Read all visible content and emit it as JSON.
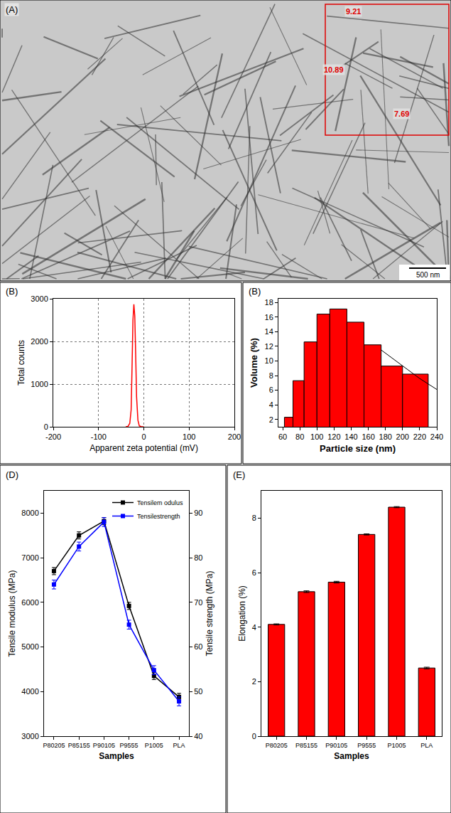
{
  "image_panel": {
    "label": "(A)",
    "measurements": [
      9.21,
      10.89,
      7.69
    ],
    "scale_bar": "500 nm"
  },
  "chart_data": [
    {
      "type": "line",
      "label": "(B)",
      "x_label": "Apparent zeta potential (mV)",
      "y_label": "Total counts",
      "x": [
        -40,
        -35,
        -31,
        -28,
        -26,
        -24,
        -22,
        -20,
        -18,
        -16,
        -13,
        -10,
        -5,
        0
      ],
      "values": [
        0,
        10,
        80,
        400,
        1400,
        2500,
        2870,
        2600,
        1700,
        700,
        150,
        20,
        0,
        0
      ],
      "color": "#ff0000",
      "xlim": [
        -200,
        200
      ],
      "xticks": [
        -200,
        -100,
        0,
        100,
        200
      ],
      "ylim": [
        0,
        3000
      ],
      "yticks": [
        0,
        1000,
        2000,
        3000
      ],
      "grid": true
    },
    {
      "type": "histogram",
      "label": "(B)",
      "x_label": "Particle size (nm)",
      "y_label": "Volume (%)",
      "bins": [
        62,
        72,
        85,
        100,
        115,
        135,
        155,
        175,
        200,
        230
      ],
      "values": [
        2.3,
        7.3,
        12.6,
        16.4,
        17.1,
        15.3,
        12.2,
        9.3,
        8.2
      ],
      "color": "#ff0000",
      "fit": {
        "x": [
          175,
          200,
          220,
          240
        ],
        "values": [
          11.5,
          9.3,
          7.6,
          6.1
        ],
        "color": "#000000"
      },
      "xlim": [
        55,
        240
      ],
      "xticks": [
        60,
        80,
        100,
        120,
        140,
        160,
        180,
        200,
        220,
        240
      ],
      "ylim": [
        1,
        18.5
      ],
      "yticks": [
        2,
        4,
        6,
        8,
        10,
        12,
        14,
        16,
        18
      ]
    },
    {
      "type": "line",
      "label": "(D)",
      "x_label": "Samples",
      "y_label": "Tensile modulus (MPa)",
      "y2_label": "Tensile strength (MPa)",
      "categories": [
        "P80205",
        "P85155",
        "P90105",
        "P9555",
        "P1005",
        "PLA"
      ],
      "series": [
        {
          "name": "Tensilem odulus",
          "color": "#000000",
          "marker": "square",
          "values": [
            6700,
            7500,
            7820,
            5920,
            4350,
            3880
          ],
          "errors": [
            80,
            80,
            80,
            80,
            80,
            80
          ]
        },
        {
          "name": "Tensilestrength",
          "color": "#0000ff",
          "marker": "square",
          "axis": "y2",
          "values": [
            74,
            82.5,
            88,
            65,
            54.8,
            47.8
          ],
          "errors": [
            1,
            1,
            1,
            1,
            1,
            1
          ]
        }
      ],
      "ylim": [
        3000,
        8500
      ],
      "yticks": [
        3000,
        4000,
        5000,
        6000,
        7000,
        8000
      ],
      "y2lim": [
        40,
        95
      ],
      "y2ticks": [
        40,
        50,
        60,
        70,
        80,
        90
      ],
      "legend": "top right"
    },
    {
      "type": "bar",
      "label": "(E)",
      "x_label": "Samples",
      "y_label": "Elongation (%)",
      "categories": [
        "P80205",
        "P85155",
        "P90105",
        "P9555",
        "P1005",
        "PLA"
      ],
      "values": [
        4.1,
        5.3,
        5.65,
        7.4,
        8.4,
        2.5
      ],
      "errors": [
        0.02,
        0.03,
        0.03,
        0.02,
        0.02,
        0.03
      ],
      "color": "#ff0000",
      "ylim": [
        0,
        9
      ],
      "yticks": [
        0,
        2,
        4,
        6,
        8
      ]
    }
  ]
}
